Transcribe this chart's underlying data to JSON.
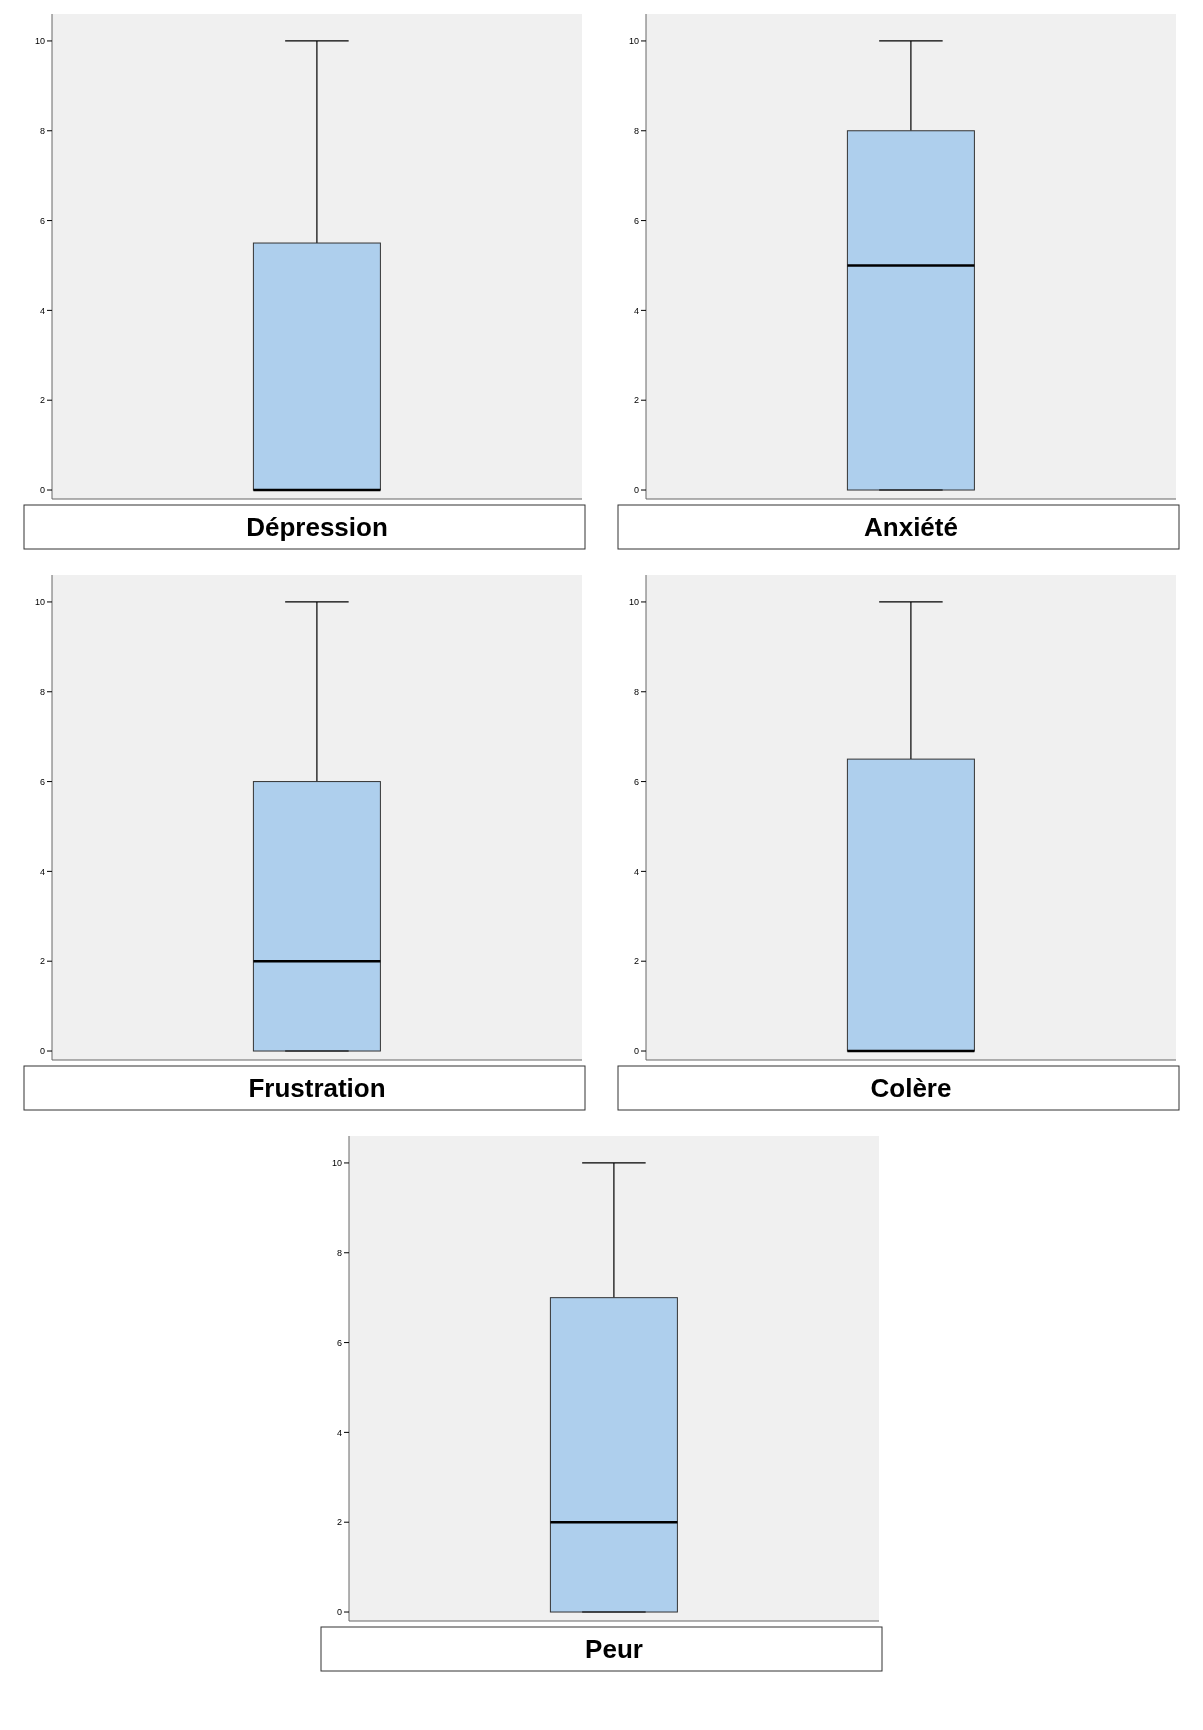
{
  "chart_data": [
    {
      "type": "box",
      "categories": [
        "Dépression"
      ],
      "boxes": [
        {
          "low": 0,
          "q1": 0,
          "median": 0,
          "q3": 5.5,
          "high": 10
        }
      ],
      "color": "#aecfed",
      "ylim": [
        -0.2,
        10.6
      ],
      "yticks": [
        0,
        2,
        4,
        6,
        8,
        10
      ]
    },
    {
      "type": "box",
      "categories": [
        "Anxiété"
      ],
      "boxes": [
        {
          "low": 0,
          "q1": 0,
          "median": 5,
          "q3": 8,
          "high": 10
        }
      ],
      "color": "#aecfed",
      "ylim": [
        -0.2,
        10.6
      ],
      "yticks": [
        0,
        2,
        4,
        6,
        8,
        10
      ]
    },
    {
      "type": "box",
      "categories": [
        "Frustration"
      ],
      "boxes": [
        {
          "low": 0,
          "q1": 0,
          "median": 2,
          "q3": 6,
          "high": 10
        }
      ],
      "color": "#aecfed",
      "ylim": [
        -0.2,
        10.6
      ],
      "yticks": [
        0,
        2,
        4,
        6,
        8,
        10
      ]
    },
    {
      "type": "box",
      "categories": [
        "Colère"
      ],
      "boxes": [
        {
          "low": 0,
          "q1": 0,
          "median": 0,
          "q3": 6.5,
          "high": 10
        }
      ],
      "color": "#aecfed",
      "ylim": [
        -0.2,
        10.6
      ],
      "yticks": [
        0,
        2,
        4,
        6,
        8,
        10
      ]
    },
    {
      "type": "box",
      "categories": [
        "Peur"
      ],
      "boxes": [
        {
          "low": 0,
          "q1": 0,
          "median": 2,
          "q3": 7,
          "high": 10
        }
      ],
      "color": "#aecfed",
      "ylim": [
        -0.2,
        10.6
      ],
      "yticks": [
        0,
        2,
        4,
        6,
        8,
        10
      ]
    }
  ]
}
